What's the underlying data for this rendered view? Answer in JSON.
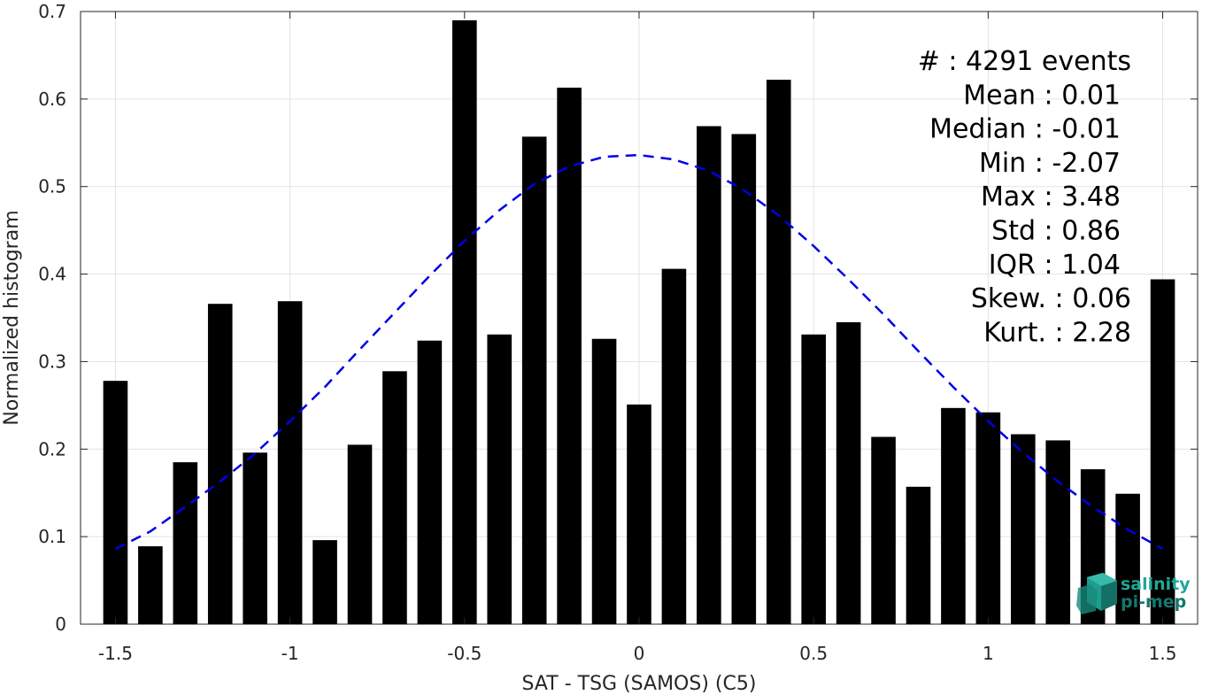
{
  "chart_data": {
    "type": "bar",
    "xlabel": "SAT - TSG (SAMOS) (C5)",
    "ylabel": "Normalized histogram",
    "xlim": [
      -1.6,
      1.6
    ],
    "ylim": [
      0,
      0.7
    ],
    "xticks": [
      -1.5,
      -1,
      -0.5,
      0,
      0.5,
      1,
      1.5
    ],
    "xtick_labels": [
      "-1.5",
      "-1",
      "-0.5",
      "0",
      "0.5",
      "1",
      "1.5"
    ],
    "yticks": [
      0,
      0.1,
      0.2,
      0.3,
      0.4,
      0.5,
      0.6,
      0.7
    ],
    "ytick_labels": [
      "0",
      "0.1",
      "0.2",
      "0.3",
      "0.4",
      "0.5",
      "0.6",
      "0.7"
    ],
    "grid": true,
    "bar_color": "#000000",
    "bins": [
      {
        "x": -1.5,
        "y": 0.278
      },
      {
        "x": -1.4,
        "y": 0.089
      },
      {
        "x": -1.3,
        "y": 0.185
      },
      {
        "x": -1.2,
        "y": 0.366
      },
      {
        "x": -1.1,
        "y": 0.196
      },
      {
        "x": -1.0,
        "y": 0.369
      },
      {
        "x": -0.9,
        "y": 0.096
      },
      {
        "x": -0.8,
        "y": 0.205
      },
      {
        "x": -0.7,
        "y": 0.289
      },
      {
        "x": -0.6,
        "y": 0.324
      },
      {
        "x": -0.5,
        "y": 0.69
      },
      {
        "x": -0.4,
        "y": 0.331
      },
      {
        "x": -0.3,
        "y": 0.557
      },
      {
        "x": -0.2,
        "y": 0.613
      },
      {
        "x": -0.1,
        "y": 0.326
      },
      {
        "x": 0.0,
        "y": 0.251
      },
      {
        "x": 0.1,
        "y": 0.406
      },
      {
        "x": 0.2,
        "y": 0.569
      },
      {
        "x": 0.3,
        "y": 0.56
      },
      {
        "x": 0.4,
        "y": 0.622
      },
      {
        "x": 0.5,
        "y": 0.331
      },
      {
        "x": 0.6,
        "y": 0.345
      },
      {
        "x": 0.7,
        "y": 0.214
      },
      {
        "x": 0.8,
        "y": 0.157
      },
      {
        "x": 0.9,
        "y": 0.247
      },
      {
        "x": 1.0,
        "y": 0.242
      },
      {
        "x": 1.1,
        "y": 0.217
      },
      {
        "x": 1.2,
        "y": 0.21
      },
      {
        "x": 1.3,
        "y": 0.177
      },
      {
        "x": 1.4,
        "y": 0.149
      },
      {
        "x": 1.5,
        "y": 0.394
      }
    ],
    "fit_curve": {
      "style": "dashed",
      "color": "#0000e6",
      "points": [
        {
          "x": -1.5,
          "y": 0.086
        },
        {
          "x": -1.4,
          "y": 0.106
        },
        {
          "x": -1.3,
          "y": 0.134
        },
        {
          "x": -1.2,
          "y": 0.163
        },
        {
          "x": -1.1,
          "y": 0.195
        },
        {
          "x": -1.0,
          "y": 0.232
        },
        {
          "x": -0.9,
          "y": 0.271
        },
        {
          "x": -0.8,
          "y": 0.314
        },
        {
          "x": -0.7,
          "y": 0.356
        },
        {
          "x": -0.6,
          "y": 0.398
        },
        {
          "x": -0.5,
          "y": 0.438
        },
        {
          "x": -0.4,
          "y": 0.473
        },
        {
          "x": -0.3,
          "y": 0.503
        },
        {
          "x": -0.2,
          "y": 0.523
        },
        {
          "x": -0.1,
          "y": 0.534
        },
        {
          "x": 0.0,
          "y": 0.536
        },
        {
          "x": 0.1,
          "y": 0.531
        },
        {
          "x": 0.2,
          "y": 0.518
        },
        {
          "x": 0.3,
          "y": 0.496
        },
        {
          "x": 0.4,
          "y": 0.467
        },
        {
          "x": 0.5,
          "y": 0.432
        },
        {
          "x": 0.6,
          "y": 0.394
        },
        {
          "x": 0.7,
          "y": 0.354
        },
        {
          "x": 0.8,
          "y": 0.312
        },
        {
          "x": 0.9,
          "y": 0.271
        },
        {
          "x": 1.0,
          "y": 0.232
        },
        {
          "x": 1.1,
          "y": 0.196
        },
        {
          "x": 1.2,
          "y": 0.163
        },
        {
          "x": 1.3,
          "y": 0.134
        },
        {
          "x": 1.4,
          "y": 0.108
        },
        {
          "x": 1.5,
          "y": 0.086
        }
      ]
    },
    "annotations": {
      "placement": "top-right",
      "lines": [
        "#  : 4291 events",
        "Mean : 0.01",
        "Median : -0.01",
        "Min : -2.07",
        "Max : 3.48",
        "Std : 0.86",
        "IQR : 1.04",
        "Skew. : 0.06",
        "Kurt. : 2.28"
      ]
    }
  },
  "logo": {
    "line1": "salinity",
    "line2": "pi-mep",
    "color1": "#1fa89a",
    "color2": "#12786e"
  }
}
